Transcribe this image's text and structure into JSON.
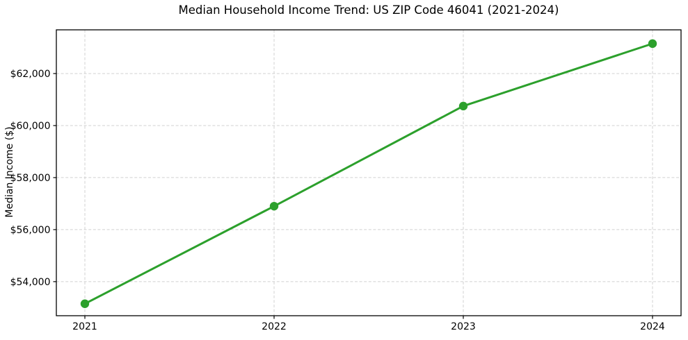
{
  "chart_data": {
    "type": "line",
    "title": "Median Household Income Trend: US ZIP Code 46041 (2021-2024)",
    "xlabel": "",
    "ylabel": "Median Income ($)",
    "categories": [
      "2021",
      "2022",
      "2023",
      "2024"
    ],
    "series": [
      {
        "name": "Median Household Income",
        "values": [
          53150,
          56900,
          60750,
          63150
        ],
        "color": "#2ca02c",
        "marker": "circle"
      }
    ],
    "ylim": [
      52690,
      63680
    ],
    "y_ticks": [
      {
        "value": 54000,
        "label": "$54,000"
      },
      {
        "value": 56000,
        "label": "$56,000"
      },
      {
        "value": 58000,
        "label": "$58,000"
      },
      {
        "value": 60000,
        "label": "$60,000"
      },
      {
        "value": 62000,
        "label": "$62,000"
      }
    ],
    "grid": "on",
    "grid_style": "dashed",
    "legend_position": "none"
  },
  "style": {
    "line_color": "#2ca02c",
    "grid_color": "#c9c9c9",
    "spine_color": "#000000",
    "background_color": "#ffffff"
  }
}
